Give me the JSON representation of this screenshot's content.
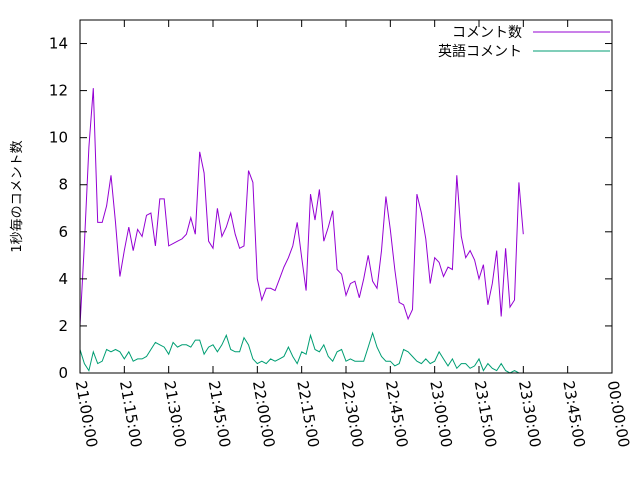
{
  "chart_data": {
    "type": "line",
    "title": "",
    "xlabel": "",
    "ylabel": "1秒毎のコメント数",
    "ylim": [
      0,
      15
    ],
    "y_ticks": [
      0,
      2,
      4,
      6,
      8,
      10,
      12,
      14
    ],
    "x_ticks": [
      "21:00:00",
      "21:15:00",
      "21:30:00",
      "21:45:00",
      "22:00:00",
      "22:15:00",
      "22:30:00",
      "22:45:00",
      "23:00:00",
      "23:15:00",
      "23:30:00",
      "23:45:00",
      "00:00:00"
    ],
    "x_range_minutes": [
      0,
      180
    ],
    "grid": false,
    "legend_position": "top-right",
    "series": [
      {
        "name": "コメント数",
        "color": "#9400d3",
        "points": [
          [
            0,
            2.0
          ],
          [
            1.5,
            5.5
          ],
          [
            3,
            9.6
          ],
          [
            4.5,
            12.1
          ],
          [
            6,
            6.4
          ],
          [
            7.5,
            6.4
          ],
          [
            9,
            7.1
          ],
          [
            10.5,
            8.4
          ],
          [
            12,
            6.4
          ],
          [
            13.5,
            4.1
          ],
          [
            15,
            5.2
          ],
          [
            16.5,
            6.2
          ],
          [
            18,
            5.2
          ],
          [
            19.5,
            6.1
          ],
          [
            21,
            5.8
          ],
          [
            22.5,
            6.7
          ],
          [
            24,
            6.8
          ],
          [
            25.5,
            5.4
          ],
          [
            27,
            7.4
          ],
          [
            28.5,
            7.4
          ],
          [
            30,
            5.4
          ],
          [
            31.5,
            5.5
          ],
          [
            33,
            5.6
          ],
          [
            34.5,
            5.7
          ],
          [
            36,
            5.9
          ],
          [
            37.5,
            6.6
          ],
          [
            39,
            5.9
          ],
          [
            40.5,
            9.4
          ],
          [
            42,
            8.5
          ],
          [
            43.5,
            5.6
          ],
          [
            45,
            5.3
          ],
          [
            46.5,
            7.0
          ],
          [
            48,
            5.8
          ],
          [
            49.5,
            6.2
          ],
          [
            51,
            6.8
          ],
          [
            52.5,
            5.9
          ],
          [
            54,
            5.3
          ],
          [
            55.5,
            5.4
          ],
          [
            57,
            8.6
          ],
          [
            58.5,
            8.1
          ],
          [
            60,
            4.0
          ],
          [
            61.5,
            3.1
          ],
          [
            63,
            3.6
          ],
          [
            64.5,
            3.6
          ],
          [
            66,
            3.5
          ],
          [
            67.5,
            4.0
          ],
          [
            69,
            4.5
          ],
          [
            70.5,
            4.9
          ],
          [
            72,
            5.4
          ],
          [
            73.5,
            6.4
          ],
          [
            75,
            4.9
          ],
          [
            76.5,
            3.5
          ],
          [
            78,
            7.6
          ],
          [
            79.5,
            6.5
          ],
          [
            81,
            7.8
          ],
          [
            82.5,
            5.6
          ],
          [
            84,
            6.2
          ],
          [
            85.5,
            6.9
          ],
          [
            87,
            4.4
          ],
          [
            88.5,
            4.2
          ],
          [
            90,
            3.3
          ],
          [
            91.5,
            3.8
          ],
          [
            93,
            3.9
          ],
          [
            94.5,
            3.2
          ],
          [
            96,
            4.0
          ],
          [
            97.5,
            5.0
          ],
          [
            99,
            3.9
          ],
          [
            100.5,
            3.6
          ],
          [
            102,
            5.2
          ],
          [
            103.5,
            7.5
          ],
          [
            105,
            6.1
          ],
          [
            106.5,
            4.4
          ],
          [
            108,
            3.0
          ],
          [
            109.5,
            2.9
          ],
          [
            111,
            2.3
          ],
          [
            112.5,
            2.7
          ],
          [
            114,
            7.6
          ],
          [
            115.5,
            6.8
          ],
          [
            117,
            5.7
          ],
          [
            118.5,
            3.8
          ],
          [
            120,
            4.9
          ],
          [
            121.5,
            4.7
          ],
          [
            123,
            4.1
          ],
          [
            124.5,
            4.5
          ],
          [
            126,
            4.4
          ],
          [
            127.5,
            8.4
          ],
          [
            129,
            5.8
          ],
          [
            130.5,
            4.9
          ],
          [
            132,
            5.2
          ],
          [
            133.5,
            4.8
          ],
          [
            135,
            4.0
          ],
          [
            136.5,
            4.6
          ],
          [
            138,
            2.9
          ],
          [
            139.5,
            3.8
          ],
          [
            141,
            5.2
          ],
          [
            142.5,
            2.4
          ],
          [
            144,
            5.3
          ],
          [
            145.5,
            2.8
          ],
          [
            147,
            3.1
          ],
          [
            148.5,
            8.1
          ],
          [
            150,
            5.9
          ]
        ]
      },
      {
        "name": "英語コメント",
        "color": "#009e73",
        "points": [
          [
            0,
            1.0
          ],
          [
            1.5,
            0.4
          ],
          [
            3,
            0.1
          ],
          [
            4.5,
            0.9
          ],
          [
            6,
            0.4
          ],
          [
            7.5,
            0.5
          ],
          [
            9,
            1.0
          ],
          [
            10.5,
            0.9
          ],
          [
            12,
            1.0
          ],
          [
            13.5,
            0.9
          ],
          [
            15,
            0.6
          ],
          [
            16.5,
            0.9
          ],
          [
            18,
            0.5
          ],
          [
            19.5,
            0.6
          ],
          [
            21,
            0.6
          ],
          [
            22.5,
            0.7
          ],
          [
            24,
            1.0
          ],
          [
            25.5,
            1.3
          ],
          [
            27,
            1.2
          ],
          [
            28.5,
            1.1
          ],
          [
            30,
            0.8
          ],
          [
            31.5,
            1.3
          ],
          [
            33,
            1.1
          ],
          [
            34.5,
            1.2
          ],
          [
            36,
            1.2
          ],
          [
            37.5,
            1.1
          ],
          [
            39,
            1.4
          ],
          [
            40.5,
            1.4
          ],
          [
            42,
            0.8
          ],
          [
            43.5,
            1.1
          ],
          [
            45,
            1.2
          ],
          [
            46.5,
            0.9
          ],
          [
            48,
            1.2
          ],
          [
            49.5,
            1.6
          ],
          [
            51,
            1.0
          ],
          [
            52.5,
            0.9
          ],
          [
            54,
            0.9
          ],
          [
            55.5,
            1.5
          ],
          [
            57,
            1.2
          ],
          [
            58.5,
            0.6
          ],
          [
            60,
            0.4
          ],
          [
            61.5,
            0.5
          ],
          [
            63,
            0.4
          ],
          [
            64.5,
            0.6
          ],
          [
            66,
            0.5
          ],
          [
            67.5,
            0.6
          ],
          [
            69,
            0.7
          ],
          [
            70.5,
            1.1
          ],
          [
            72,
            0.7
          ],
          [
            73.5,
            0.4
          ],
          [
            75,
            0.9
          ],
          [
            76.5,
            0.8
          ],
          [
            78,
            1.6
          ],
          [
            79.5,
            1.0
          ],
          [
            81,
            0.9
          ],
          [
            82.5,
            1.2
          ],
          [
            84,
            0.7
          ],
          [
            85.5,
            0.5
          ],
          [
            87,
            0.9
          ],
          [
            88.5,
            1.0
          ],
          [
            90,
            0.5
          ],
          [
            91.5,
            0.6
          ],
          [
            93,
            0.5
          ],
          [
            94.5,
            0.5
          ],
          [
            96,
            0.5
          ],
          [
            97.5,
            1.1
          ],
          [
            99,
            1.7
          ],
          [
            100.5,
            1.1
          ],
          [
            102,
            0.7
          ],
          [
            103.5,
            0.5
          ],
          [
            105,
            0.5
          ],
          [
            106.5,
            0.3
          ],
          [
            108,
            0.4
          ],
          [
            109.5,
            1.0
          ],
          [
            111,
            0.9
          ],
          [
            112.5,
            0.7
          ],
          [
            114,
            0.5
          ],
          [
            115.5,
            0.4
          ],
          [
            117,
            0.6
          ],
          [
            118.5,
            0.4
          ],
          [
            120,
            0.5
          ],
          [
            121.5,
            0.9
          ],
          [
            123,
            0.6
          ],
          [
            124.5,
            0.3
          ],
          [
            126,
            0.6
          ],
          [
            127.5,
            0.2
          ],
          [
            129,
            0.4
          ],
          [
            130.5,
            0.4
          ],
          [
            132,
            0.2
          ],
          [
            133.5,
            0.3
          ],
          [
            135,
            0.6
          ],
          [
            136.5,
            0.1
          ],
          [
            138,
            0.4
          ],
          [
            139.5,
            0.2
          ],
          [
            141,
            0.1
          ],
          [
            142.5,
            0.4
          ],
          [
            144,
            0.1
          ],
          [
            145.5,
            0.0
          ],
          [
            147,
            0.1
          ],
          [
            148.5,
            0.0
          ],
          [
            150,
            0.0
          ]
        ]
      }
    ]
  }
}
